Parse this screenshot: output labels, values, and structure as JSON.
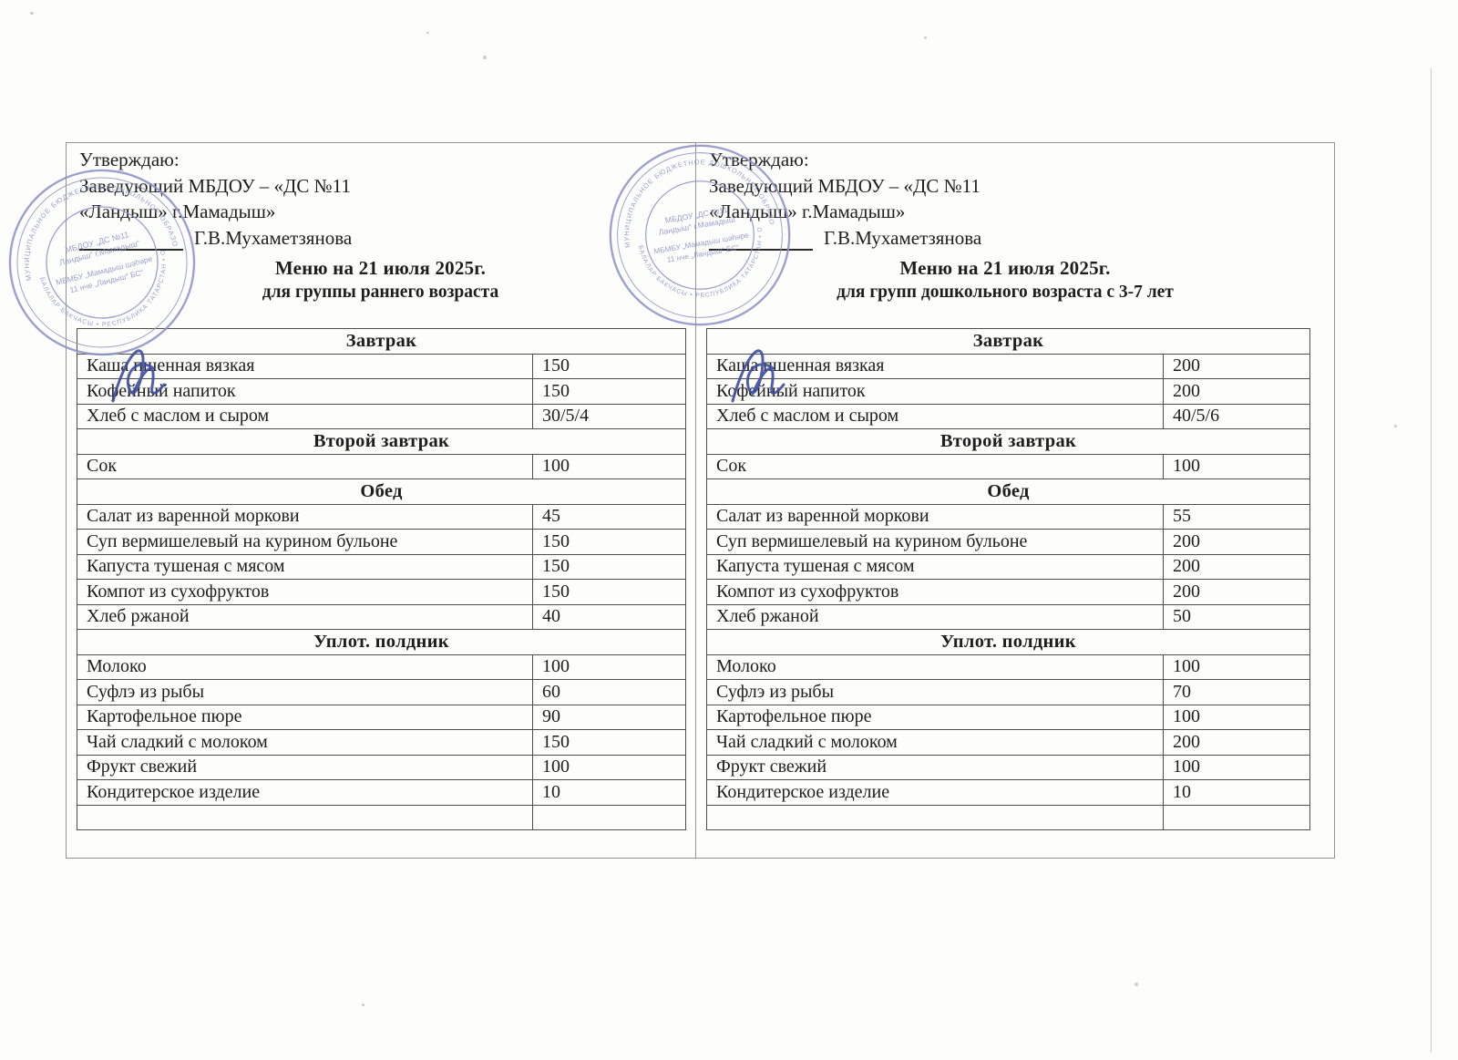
{
  "document": {
    "approval": {
      "line1": "Утверждаю:",
      "line2": "Заведующий МБДОУ – «ДС №11",
      "line3": "«Ландыш» г.Мамадыш»",
      "approver_name": "Г.В.Мухаметзянова"
    },
    "panels": [
      {
        "title": "Меню на 21 июля 2025г.",
        "subtitle": "для группы раннего возраста",
        "sections": [
          {
            "header": "Завтрак",
            "rows": [
              [
                "Каша пшенная вязкая",
                "150"
              ],
              [
                "Кофейный напиток",
                "150"
              ],
              [
                "Хлеб с маслом и сыром",
                "30/5/4"
              ]
            ]
          },
          {
            "header": "Второй завтрак",
            "rows": [
              [
                "Сок",
                "100"
              ]
            ]
          },
          {
            "header": "Обед",
            "rows": [
              [
                "Салат из варенной моркови",
                "45"
              ],
              [
                "Суп вермишелевый на курином бульоне",
                "150"
              ],
              [
                "Капуста тушеная с мясом",
                "150"
              ],
              [
                "Компот из сухофруктов",
                "150"
              ],
              [
                "Хлеб ржаной",
                "40"
              ]
            ]
          },
          {
            "header": "Уплот. полдник",
            "rows": [
              [
                "Молоко",
                "100"
              ],
              [
                "Суфлэ из рыбы",
                "60"
              ],
              [
                "Картофельное пюре",
                "90"
              ],
              [
                "Чай сладкий с молоком",
                "150"
              ],
              [
                "Фрукт свежий",
                "100"
              ],
              [
                "Кондитерское изделие",
                "10"
              ],
              [
                "",
                ""
              ]
            ]
          }
        ]
      },
      {
        "title": "Меню на 21 июля  2025г.",
        "subtitle": "для групп дошкольного возраста с 3-7 лет",
        "sections": [
          {
            "header": "Завтрак",
            "rows": [
              [
                "Каша пшенная вязкая",
                "200"
              ],
              [
                "Кофейный напиток",
                "200"
              ],
              [
                "Хлеб с маслом и сыром",
                "40/5/6"
              ]
            ]
          },
          {
            "header": "Второй завтрак",
            "rows": [
              [
                "Сок",
                "100"
              ]
            ]
          },
          {
            "header": "Обед",
            "rows": [
              [
                "Салат из варенной моркови",
                "55"
              ],
              [
                "Суп вермишелевый на курином бульоне",
                "200"
              ],
              [
                "Капуста тушеная с мясом",
                "200"
              ],
              [
                "Компот из сухофруктов",
                "200"
              ],
              [
                "Хлеб ржаной",
                "50"
              ]
            ]
          },
          {
            "header": "Уплот. полдник",
            "rows": [
              [
                "Молоко",
                "100"
              ],
              [
                "Суфлэ из рыбы",
                "70"
              ],
              [
                "Картофельное пюре",
                "100"
              ],
              [
                "Чай сладкий с молоком",
                "200"
              ],
              [
                "Фрукт свежий",
                "100"
              ],
              [
                "Кондитерское изделие",
                "10"
              ],
              [
                "",
                ""
              ]
            ]
          }
        ]
      }
    ]
  },
  "stamp": {
    "outer_ring_text": "МУНИЦИПАЛЬНОЕ БЮДЖЕТНОЕ ДОШКОЛЬНОЕ ОБРАЗОВАТЕЛЬНОЕ УЧРЕЖДЕНИЕ • МАМАДЫШСКОГО МУНИЦИПАЛЬНОГО РАЙОНА •",
    "inner_ring_text": "БАЛАЛАР БАКЧАСЫ • РЕСПУБЛИКА ТАТАРСТАН • ОГРН …064006",
    "center_line1": "МБДОУ „ДС №11",
    "center_line2": "Ландыш“ г.Мамадыш“",
    "center_line3": "МБМБУ „Мамадыш шәһәре",
    "center_line4": "11 нче „Ландыш“ БС“"
  },
  "colors": {
    "ink": "#1e1e1e",
    "stamp_ink": "#8a90c5",
    "signature_ink": "#3e4da0",
    "table_border": "#4e4e4e",
    "box_border": "#8f9490"
  }
}
